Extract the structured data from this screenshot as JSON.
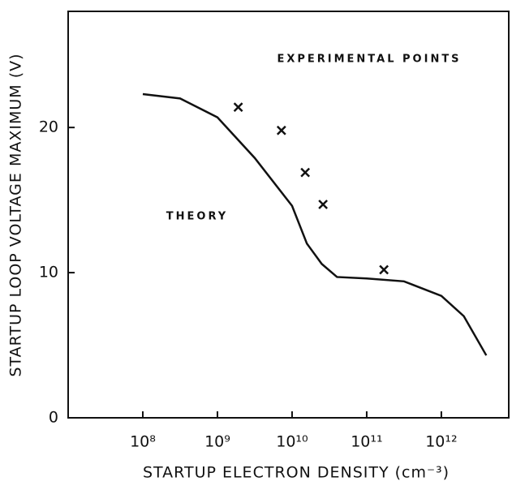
{
  "chart_data": {
    "type": "line",
    "x_label": "STARTUP ELECTRON DENSITY (cm⁻³)",
    "y_label": "STARTUP LOOP VOLTAGE MAXIMUM (V)",
    "annotations": [
      "EXPERIMENTAL POINTS",
      "THEORY"
    ],
    "x_log": true,
    "xlim": [
      10000000.0,
      8000000000000.0
    ],
    "ylim": [
      0,
      28
    ],
    "xticks": [
      {
        "value": 100000000.0,
        "label": "10⁸"
      },
      {
        "value": 1000000000.0,
        "label": "10⁹"
      },
      {
        "value": 10000000000.0,
        "label": "10¹⁰"
      },
      {
        "value": 100000000000.0,
        "label": "10¹¹"
      },
      {
        "value": 1000000000000.0,
        "label": "10¹²"
      }
    ],
    "yticks": [
      0,
      10,
      20
    ],
    "grid": false,
    "series": [
      {
        "color": "#111111",
        "style": "line",
        "x": [
          100000000.0,
          316000000.0,
          1000000000.0,
          3160000000.0,
          10000000000.0,
          15800000000.0,
          25000000000.0,
          40000000000.0,
          100000000000.0,
          316000000000.0,
          1000000000000.0,
          2000000000000.0,
          4000000000000.0
        ],
        "values": [
          22.3,
          22.0,
          20.7,
          17.9,
          14.6,
          12.0,
          10.6,
          9.7,
          9.6,
          9.4,
          8.4,
          7.0,
          4.3
        ]
      },
      {
        "color": "#111111",
        "style": "marker",
        "x": [
          1900000000.0,
          7200000000.0,
          15000000000.0,
          26000000000.0,
          170000000000.0
        ],
        "values": [
          21.4,
          19.8,
          16.9,
          14.7,
          10.2
        ]
      }
    ]
  }
}
